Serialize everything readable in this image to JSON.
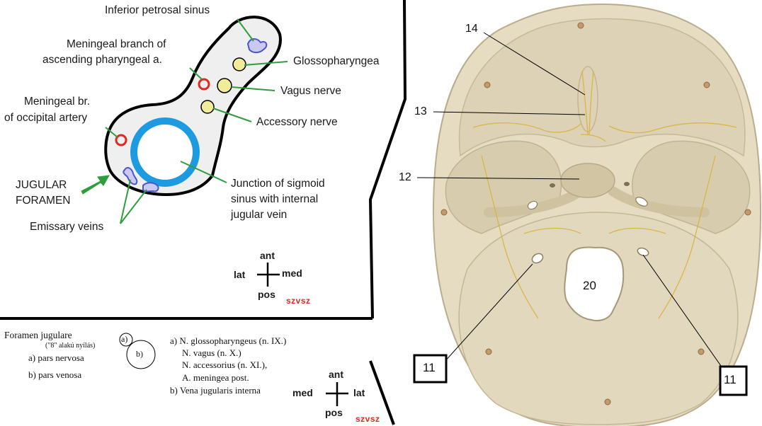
{
  "diagram": {
    "labels": {
      "inferior_petrosal_sinus": "Inferior petrosal sinus",
      "meningeal_branch_line1": "Meningeal branch of",
      "meningeal_branch_line2": "ascending pharyngeal a.",
      "glossopharyngeal": "Glossopharyngea",
      "vagus": "Vagus nerve",
      "meningeal_occ_line1": "Meningeal br.",
      "meningeal_occ_line2": "of occipital artery",
      "accessory": "Accessory nerve",
      "jugular_line1": "JUGULAR",
      "jugular_line2": "FORAMEN",
      "junction_line1": "Junction of sigmoid",
      "junction_line2": "sinus with internal",
      "junction_line3": "jugular vein",
      "emissary": "Emissary veins"
    },
    "orientation": {
      "ant": "ant",
      "lat": "lat",
      "med": "med",
      "pos": "pos",
      "mark": "szvsz"
    }
  },
  "notes": {
    "title": "Foramen jugulare",
    "subtitle": "(\"8\" alakú nyílás)",
    "item_a": "a) pars nervosa",
    "item_b": "b) pars venosa",
    "circle_a": "a)",
    "circle_b": "b)",
    "desc_a1": "a) N. glossopharyngeus (n. IX.)",
    "desc_a2": "N. vagus (n. X.)",
    "desc_a3": "N. accessorius (n. XI.),",
    "desc_a4": "A. meningea post.",
    "desc_b": "b) Vena jugularis interna",
    "orientation": {
      "ant": "ant",
      "med": "med",
      "lat": "lat",
      "pos": "pos",
      "mark": "szvsz"
    }
  },
  "skull_photo": {
    "labels": {
      "n14": "14",
      "n13": "13",
      "n12": "12",
      "n20": "20",
      "n11_left": "11",
      "n11_right": "11"
    }
  },
  "colors": {
    "vein_blue": "#1e9be0",
    "artery_red": "#e0281e",
    "nerve_yellow": "#f2ec9a",
    "pointer_green": "#2e9e3c",
    "bone": "#e8e0c8"
  }
}
